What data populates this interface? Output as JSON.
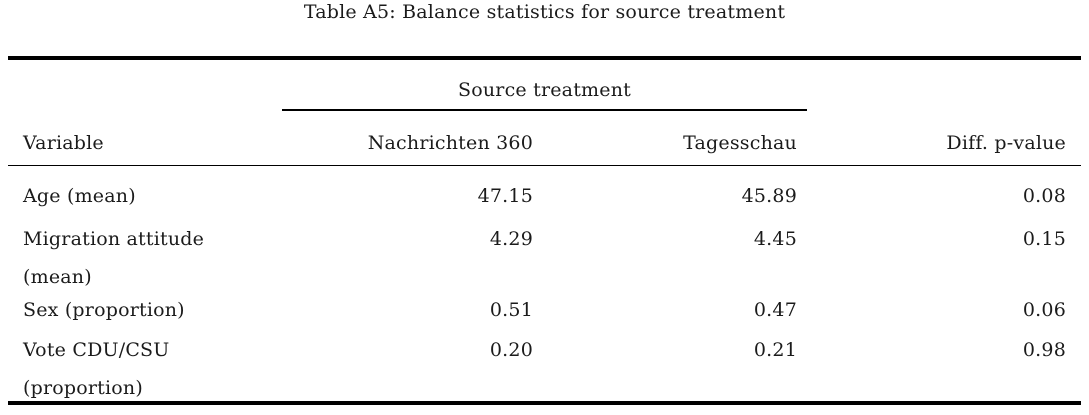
{
  "title": "Table A5: Balance statistics for source treatment",
  "colors": {
    "background": "#ffffff",
    "text": "#1b1b1b",
    "rule": "#000000"
  },
  "table": {
    "spanner": "Source treatment",
    "columns": [
      "Variable",
      "Nachrichten 360",
      "Tagesschau",
      "Diff. p-value"
    ],
    "rows": [
      {
        "label": "Age (mean)",
        "label2": "",
        "nachrichten_360": "47.15",
        "tagesschau": "45.89",
        "diff_p_value": "0.08"
      },
      {
        "label": "Migration attitude",
        "label2": "(mean)",
        "nachrichten_360": "4.29",
        "tagesschau": "4.45",
        "diff_p_value": "0.15"
      },
      {
        "label": "Sex (proportion)",
        "label2": "",
        "nachrichten_360": "0.51",
        "tagesschau": "0.47",
        "diff_p_value": "0.06"
      },
      {
        "label": "Vote CDU/CSU",
        "label2": "(proportion)",
        "nachrichten_360": "0.20",
        "tagesschau": "0.21",
        "diff_p_value": "0.98"
      }
    ]
  }
}
